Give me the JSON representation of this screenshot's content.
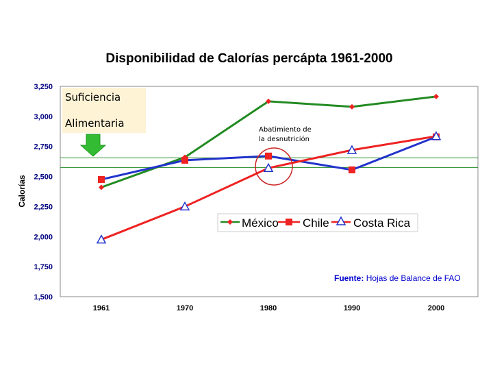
{
  "chart_data": {
    "type": "line",
    "title": "Disponibilidad de Calorías percápta 1961-2000",
    "xlabel": "",
    "ylabel": "Calorías",
    "categories": [
      "1961",
      "1970",
      "1980",
      "1990",
      "2000"
    ],
    "ylim": [
      1500,
      3250
    ],
    "yticks": [
      "1,500",
      "1,750",
      "2,000",
      "2,250",
      "2,500",
      "2,750",
      "3,000",
      "3,250"
    ],
    "ytick_values": [
      1500,
      1750,
      2000,
      2250,
      2500,
      2750,
      3000,
      3250
    ],
    "series": [
      {
        "name": "México",
        "color": "#228b22",
        "marker": "diamond",
        "values": [
          2410,
          2660,
          3125,
          3080,
          3165
        ]
      },
      {
        "name": "Chile",
        "color": "#2233cc",
        "marker": "square",
        "values": [
          2475,
          2635,
          2670,
          2555,
          2830
        ]
      },
      {
        "name": "Costa Rica",
        "color": "#ee2222",
        "marker": "triangle",
        "values": [
          1975,
          2250,
          2570,
          2720,
          2835
        ]
      }
    ],
    "reference_lines": [
      2655,
      2575
    ],
    "source_label": "Fuente:",
    "source_text": "Hojas de Balance de FAO",
    "legend_position": "center-right"
  },
  "annotations": {
    "box_line1": "Suficiencia",
    "box_line2": "Alimentaria",
    "circle_line1": "Abatimiento de",
    "circle_line2": "la desnutrición"
  },
  "colors": {
    "frame": "#888888",
    "arrow": "#33bb33",
    "circle": "#cc2222",
    "reference": "#228b22"
  }
}
